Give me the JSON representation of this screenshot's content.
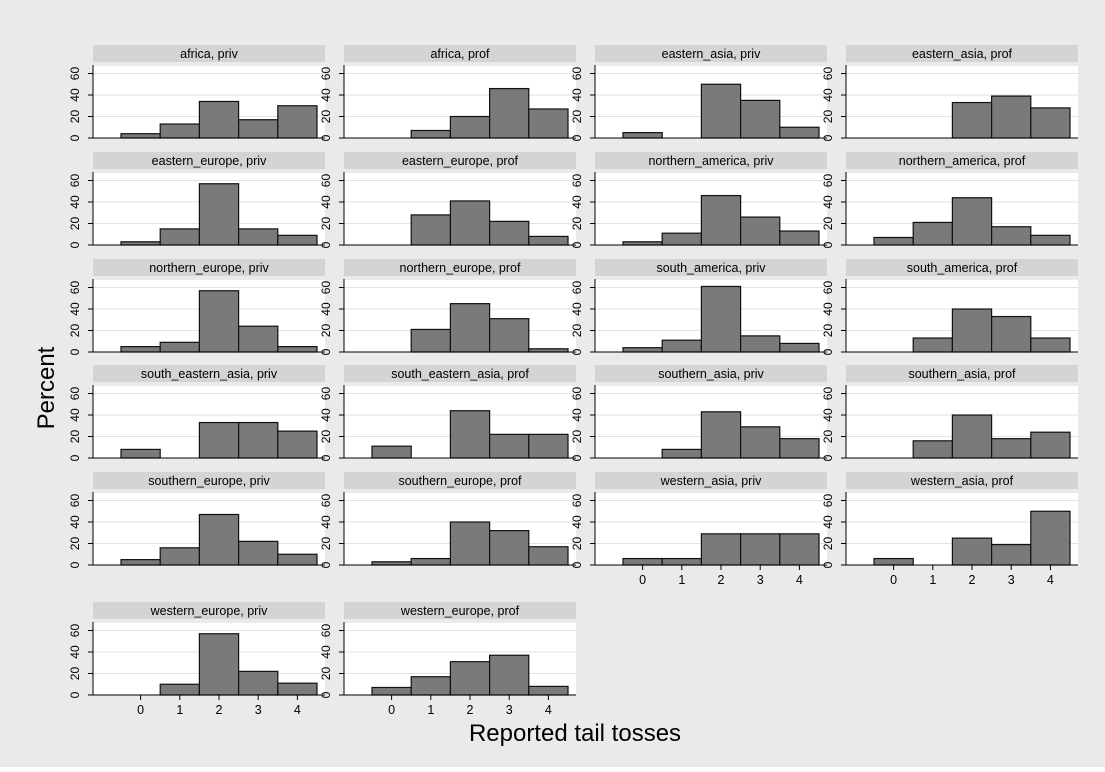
{
  "colors": {
    "outer_background": "#EAEAEA",
    "plot_background": "#FFFFFF",
    "strip_background": "#D4D4D4",
    "bar_fill": "#7A7A7A",
    "bar_stroke": "#111111",
    "grid": "#E2E2E2",
    "axis": "#000000",
    "text": "#000000"
  },
  "chart_data": {
    "type": "bar",
    "chart_kind": "histogram small multiples",
    "ylabel": "Percent",
    "xlabel": "Reported tail tosses",
    "categories": [
      "0",
      "1",
      "2",
      "3",
      "4"
    ],
    "y_ticks": [
      0,
      20,
      40,
      60
    ],
    "ylim": [
      0,
      67
    ],
    "grid": true,
    "panels": [
      {
        "title": "africa, priv",
        "values": [
          4,
          13,
          34,
          17,
          30
        ]
      },
      {
        "title": "africa, prof",
        "values": [
          0,
          7,
          20,
          46,
          27
        ]
      },
      {
        "title": "eastern_asia, priv",
        "values": [
          5,
          0,
          50,
          35,
          10
        ]
      },
      {
        "title": "eastern_asia, prof",
        "values": [
          0,
          0,
          33,
          39,
          28
        ]
      },
      {
        "title": "eastern_europe, priv",
        "values": [
          3,
          15,
          57,
          15,
          9
        ]
      },
      {
        "title": "eastern_europe, prof",
        "values": [
          0,
          28,
          41,
          22,
          8
        ]
      },
      {
        "title": "northern_america, priv",
        "values": [
          3,
          11,
          46,
          26,
          13
        ]
      },
      {
        "title": "northern_america, prof",
        "values": [
          7,
          21,
          44,
          17,
          9
        ]
      },
      {
        "title": "northern_europe, priv",
        "values": [
          5,
          9,
          57,
          24,
          5
        ]
      },
      {
        "title": "northern_europe, prof",
        "values": [
          0,
          21,
          45,
          31,
          3
        ]
      },
      {
        "title": "south_america, priv",
        "values": [
          4,
          11,
          61,
          15,
          8
        ]
      },
      {
        "title": "south_america, prof",
        "values": [
          0,
          13,
          40,
          33,
          13
        ]
      },
      {
        "title": "south_eastern_asia, priv",
        "values": [
          8,
          0,
          33,
          33,
          25
        ]
      },
      {
        "title": "south_eastern_asia, prof",
        "values": [
          11,
          0,
          44,
          22,
          22
        ]
      },
      {
        "title": "southern_asia, priv",
        "values": [
          0,
          8,
          43,
          29,
          18
        ]
      },
      {
        "title": "southern_asia, prof",
        "values": [
          0,
          16,
          40,
          18,
          24
        ]
      },
      {
        "title": "southern_europe, priv",
        "values": [
          5,
          16,
          47,
          22,
          10
        ]
      },
      {
        "title": "southern_europe, prof",
        "values": [
          3,
          6,
          40,
          32,
          17
        ]
      },
      {
        "title": "western_asia, priv",
        "values": [
          6,
          6,
          29,
          29,
          29
        ]
      },
      {
        "title": "western_asia, prof",
        "values": [
          6,
          0,
          25,
          19,
          50
        ]
      },
      {
        "title": "western_europe, priv",
        "values": [
          0,
          10,
          57,
          22,
          11
        ]
      },
      {
        "title": "western_europe, prof",
        "values": [
          7,
          17,
          31,
          37,
          8
        ]
      }
    ]
  }
}
